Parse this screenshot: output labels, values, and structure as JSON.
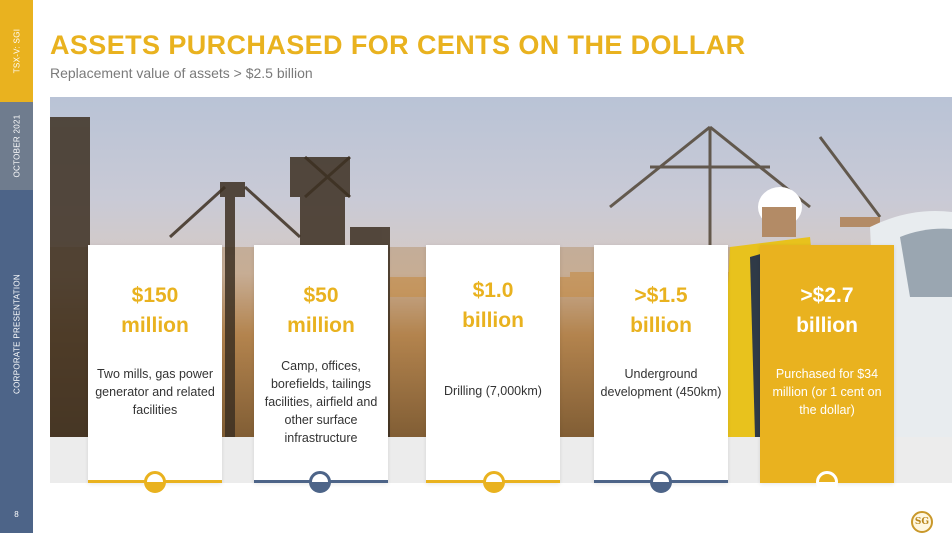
{
  "sidebar": {
    "ticker": "TSX-V: SGI",
    "date": "OCTOBER 2021",
    "section": "CORPORATE PRESENTATION",
    "page_number": "8"
  },
  "header": {
    "title": "ASSETS PURCHASED FOR CENTS ON THE DOLLAR",
    "subtitle": "Replacement value of assets > $2.5 billion"
  },
  "cards": [
    {
      "value_line1": "$150",
      "value_line2": "million",
      "description": "Two mills, gas power generator and related facilities"
    },
    {
      "value_line1": "$50",
      "value_line2": "million",
      "description": "Camp, offices, borefields, tailings facilities, airfield and other surface infrastructure"
    },
    {
      "value_line1": "$1.0",
      "value_line2": "billion",
      "description": "Drilling (7,000km)"
    },
    {
      "value_line1": ">$1.5",
      "value_line2": "billion",
      "description": "Underground development (450km)"
    },
    {
      "value_line1": ">$2.7",
      "value_line2": "billion",
      "description": "Purchased for $34 million (or 1 cent on the dollar)"
    }
  ],
  "colors": {
    "accent_gold": "#e9b21f",
    "accent_blue": "#4d6488",
    "accent_slate": "#6f7c8e"
  },
  "logo": {
    "text": "SG"
  }
}
